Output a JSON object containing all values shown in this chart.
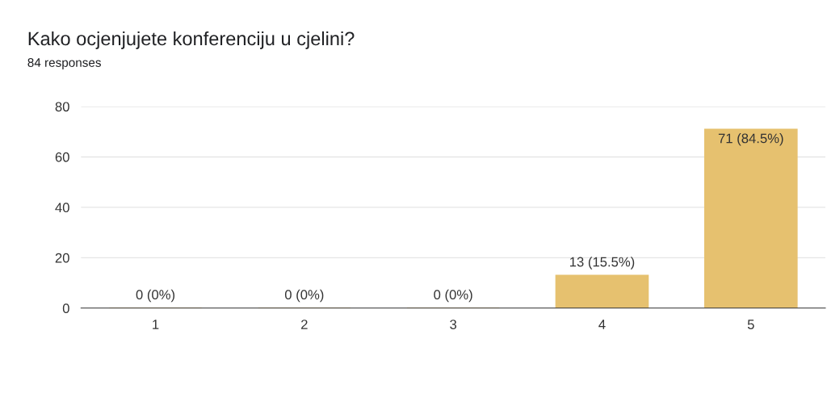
{
  "chart_data": {
    "type": "bar",
    "title": "Kako ocjenjujete konferenciju u cjelini?",
    "subtitle": "84 responses",
    "categories": [
      "1",
      "2",
      "3",
      "4",
      "5"
    ],
    "values": [
      0,
      0,
      0,
      13,
      71
    ],
    "value_labels": [
      "0 (0%)",
      "0 (0%)",
      "0 (0%)",
      "13 (15.5%)",
      "71 (84.5%)"
    ],
    "color": "#e6c16f",
    "ylim": [
      0,
      80
    ],
    "yticks": [
      0,
      20,
      40,
      60,
      80
    ],
    "grid": "y"
  }
}
